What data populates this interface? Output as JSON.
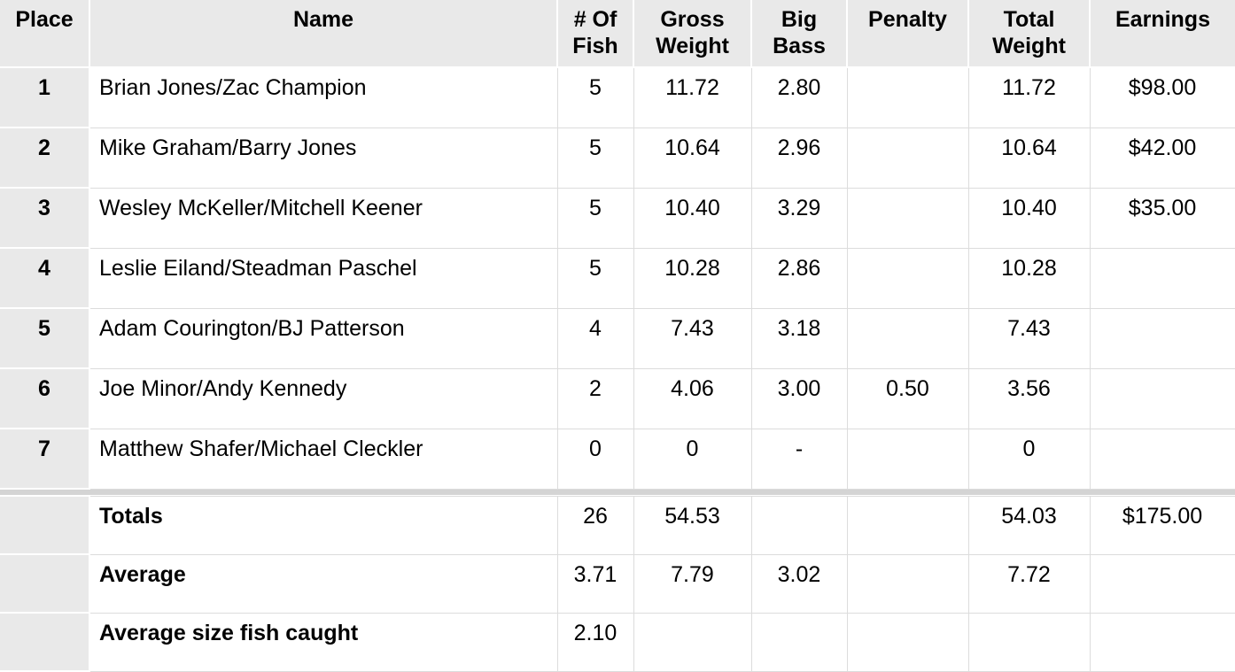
{
  "colors": {
    "header_bg": "#e9e9e9",
    "place_column_bg": "#e9e9e9",
    "grid_line": "#dcdcdc",
    "section_divider_bar": "#d4d4d4",
    "row_bg": "#ffffff",
    "text": "#000000"
  },
  "table": {
    "columns": [
      {
        "key": "place",
        "label": "Place"
      },
      {
        "key": "name",
        "label": "Name"
      },
      {
        "key": "fish",
        "label": "# Of Fish"
      },
      {
        "key": "gross",
        "label": "Gross Weight"
      },
      {
        "key": "big_bass",
        "label": "Big Bass"
      },
      {
        "key": "penalty",
        "label": "Penalty"
      },
      {
        "key": "total",
        "label": "Total Weight"
      },
      {
        "key": "earnings",
        "label": "Earnings"
      }
    ],
    "rows": [
      {
        "place": "1",
        "name": "Brian Jones/Zac Champion",
        "fish": "5",
        "gross": "11.72",
        "big_bass": "2.80",
        "penalty": "",
        "total": "11.72",
        "earnings": "$98.00"
      },
      {
        "place": "2",
        "name": "Mike Graham/Barry Jones",
        "fish": "5",
        "gross": "10.64",
        "big_bass": "2.96",
        "penalty": "",
        "total": "10.64",
        "earnings": "$42.00"
      },
      {
        "place": "3",
        "name": "Wesley McKeller/Mitchell Keener",
        "fish": "5",
        "gross": "10.40",
        "big_bass": "3.29",
        "penalty": "",
        "total": "10.40",
        "earnings": "$35.00"
      },
      {
        "place": "4",
        "name": "Leslie Eiland/Steadman Paschel",
        "fish": "5",
        "gross": "10.28",
        "big_bass": "2.86",
        "penalty": "",
        "total": "10.28",
        "earnings": ""
      },
      {
        "place": "5",
        "name": "Adam Courington/BJ Patterson",
        "fish": "4",
        "gross": "7.43",
        "big_bass": "3.18",
        "penalty": "",
        "total": "7.43",
        "earnings": ""
      },
      {
        "place": "6",
        "name": "Joe Minor/Andy Kennedy",
        "fish": "2",
        "gross": "4.06",
        "big_bass": "3.00",
        "penalty": "0.50",
        "total": "3.56",
        "earnings": ""
      },
      {
        "place": "7",
        "name": "Matthew Shafer/Michael Cleckler",
        "fish": "0",
        "gross": "0",
        "big_bass": "-",
        "penalty": "",
        "total": "0",
        "earnings": ""
      }
    ],
    "summary_rows": [
      {
        "place": "",
        "name": "Totals",
        "fish": "26",
        "gross": "54.53",
        "big_bass": "",
        "penalty": "",
        "total": "54.03",
        "earnings": "$175.00"
      },
      {
        "place": "",
        "name": "Average",
        "fish": "3.71",
        "gross": "7.79",
        "big_bass": "3.02",
        "penalty": "",
        "total": "7.72",
        "earnings": ""
      },
      {
        "place": "",
        "name": "Average size fish caught",
        "fish": "2.10",
        "gross": "",
        "big_bass": "",
        "penalty": "",
        "total": "",
        "earnings": ""
      }
    ]
  }
}
